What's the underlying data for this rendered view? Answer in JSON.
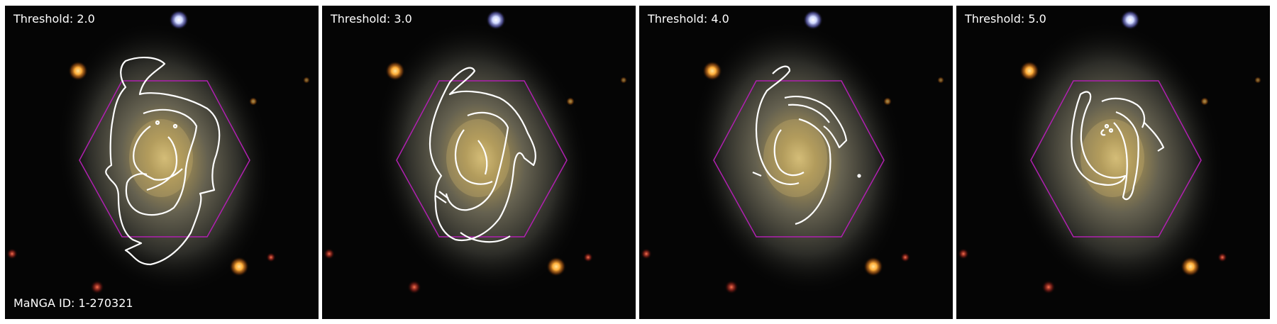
{
  "panels": [
    {
      "threshold_label": "Threshold: 2.0"
    },
    {
      "threshold_label": "Threshold: 3.0"
    },
    {
      "threshold_label": "Threshold: 4.0"
    },
    {
      "threshold_label": "Threshold: 5.0"
    }
  ],
  "galaxy": {
    "id_label": "MaNGA ID: 1-270321"
  },
  "colors": {
    "background": "#050505",
    "hexagon": "#b020b0",
    "contour": "#ffffff",
    "galaxy_core": "#d8c27a",
    "galaxy_disk": "#6e6a5a"
  },
  "stars": [
    {
      "name": "blue-white-star",
      "color": "#e8ecff"
    },
    {
      "name": "orange-star-upper-left",
      "color": "#ffb040"
    },
    {
      "name": "orange-star-lower-right",
      "color": "#ff9a30"
    },
    {
      "name": "red-star-lower-left",
      "color": "#ff4030"
    }
  ]
}
